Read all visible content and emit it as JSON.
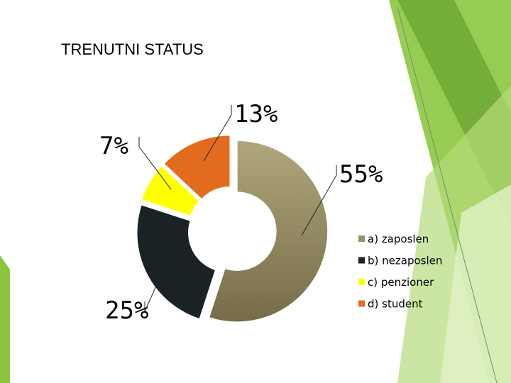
{
  "chart_data": {
    "type": "donut",
    "title": "TRENUTNI STATUS",
    "categories": [
      "a) zaposlen",
      "b) nezaposlen",
      "c) penzioner",
      "d) student"
    ],
    "values": [
      55,
      25,
      7,
      13
    ],
    "value_labels": [
      "55%",
      "25%",
      "7%",
      "13%"
    ],
    "colors": [
      "#a39a6c",
      "#1b2226",
      "#ffff00",
      "#e36b1e"
    ],
    "legend": "right"
  }
}
